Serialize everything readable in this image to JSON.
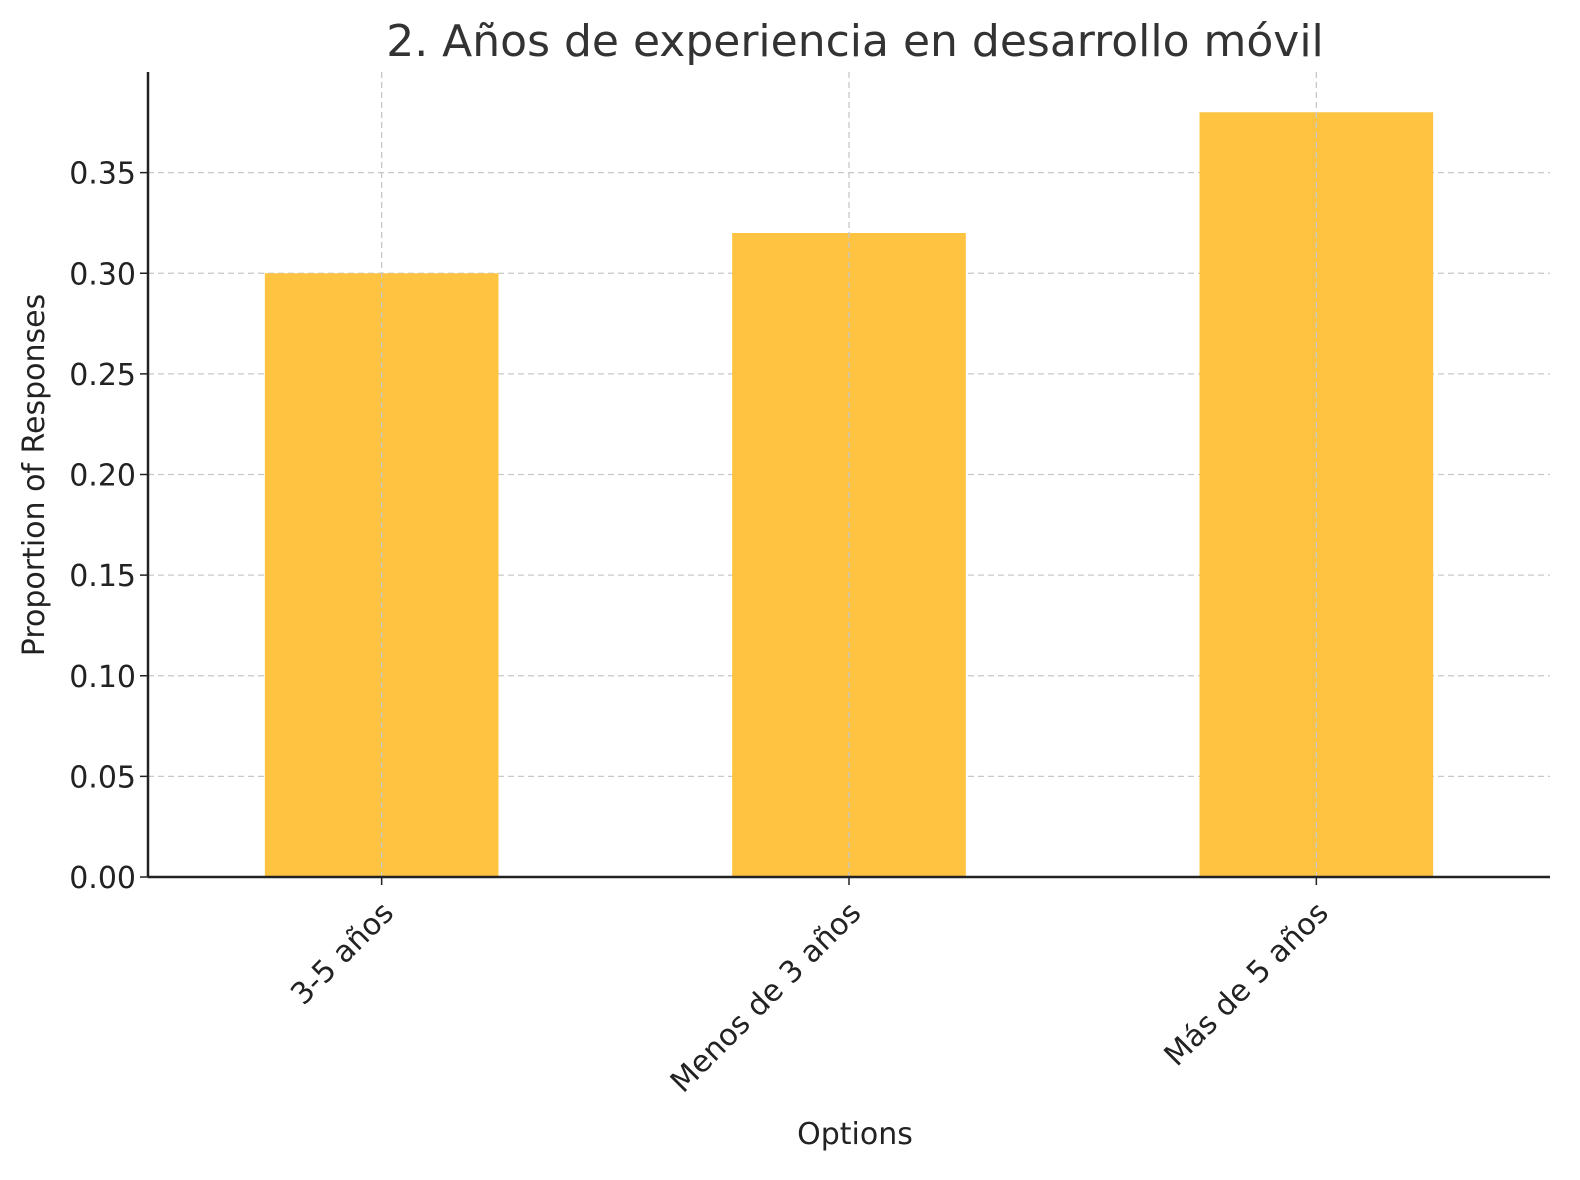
{
  "chart_data": {
    "type": "bar",
    "title": "2. Años de experiencia en desarrollo móvil",
    "xlabel": "Options",
    "ylabel": "Proportion of Responses",
    "categories": [
      "3-5 años",
      "Menos de 3 años",
      "Más de 5 años"
    ],
    "values": [
      0.3,
      0.32,
      0.38
    ],
    "ylim": [
      0,
      0.4
    ],
    "yticks": [
      "0.00",
      "0.05",
      "0.10",
      "0.15",
      "0.20",
      "0.25",
      "0.30",
      "0.35"
    ],
    "bar_color": "#ffc342",
    "grid": true
  }
}
